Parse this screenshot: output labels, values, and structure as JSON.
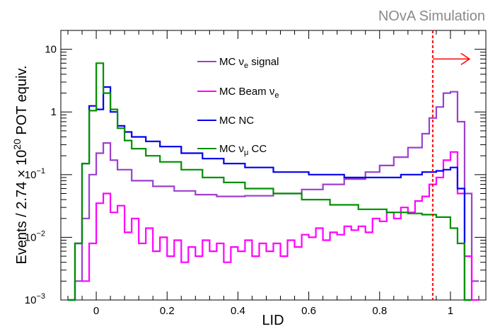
{
  "chart_data": {
    "type": "step-histogram",
    "header_label": "NOvA Simulation",
    "xlabel": "LID",
    "ylabel": "Events / 2.74 × 10^20 POT equiv.",
    "ylabel_parts": {
      "pre": "Events / 2.74 × 10",
      "exp": "20",
      "post": " POT equiv."
    },
    "xlim": [
      -0.1,
      1.1
    ],
    "ylim": [
      0.001,
      20
    ],
    "yscale": "log",
    "x_ticks": [
      {
        "value": 0,
        "label": "0"
      },
      {
        "value": 0.2,
        "label": "0.2"
      },
      {
        "value": 0.4,
        "label": "0.4"
      },
      {
        "value": 0.6,
        "label": "0.6"
      },
      {
        "value": 0.8,
        "label": "0.8"
      },
      {
        "value": 1,
        "label": "1"
      }
    ],
    "y_ticks": [
      {
        "value": 0.001,
        "base": "10",
        "exp": "−3"
      },
      {
        "value": 0.01,
        "base": "10",
        "exp": "−2"
      },
      {
        "value": 0.1,
        "base": "10",
        "exp": "−1"
      },
      {
        "value": 1,
        "base": "1",
        "exp": ""
      },
      {
        "value": 10,
        "base": "10",
        "exp": ""
      }
    ],
    "cut": {
      "value": 0.95,
      "color": "#ff0000",
      "direction": "right"
    },
    "bin_width": 0.02,
    "series": [
      {
        "name": "MC νe signal",
        "legend": {
          "pre": "MC ν",
          "sub": "e",
          "post": " signal"
        },
        "color": "#9c3fd0",
        "points": [
          [
            -0.08,
            0.001
          ],
          [
            -0.06,
            0.002
          ],
          [
            -0.04,
            0.02
          ],
          [
            -0.02,
            0.1
          ],
          [
            0.0,
            0.22
          ],
          [
            0.02,
            0.32
          ],
          [
            0.04,
            0.17
          ],
          [
            0.06,
            0.12
          ],
          [
            0.1,
            0.08
          ],
          [
            0.16,
            0.065
          ],
          [
            0.22,
            0.055
          ],
          [
            0.28,
            0.048
          ],
          [
            0.34,
            0.045
          ],
          [
            0.42,
            0.046
          ],
          [
            0.5,
            0.05
          ],
          [
            0.58,
            0.058
          ],
          [
            0.64,
            0.07
          ],
          [
            0.7,
            0.085
          ],
          [
            0.76,
            0.11
          ],
          [
            0.8,
            0.14
          ],
          [
            0.84,
            0.19
          ],
          [
            0.88,
            0.27
          ],
          [
            0.92,
            0.45
          ],
          [
            0.94,
            0.8
          ],
          [
            0.96,
            1.2
          ],
          [
            0.98,
            2.0
          ],
          [
            1.0,
            2.1
          ],
          [
            1.02,
            0.7
          ],
          [
            1.04,
            0.05
          ],
          [
            1.06,
            0.002
          ]
        ]
      },
      {
        "name": "MC Beam νe",
        "legend": {
          "pre": "MC Beam ν",
          "sub": "e",
          "post": ""
        },
        "color": "#ff00ff",
        "points": [
          [
            -0.04,
            0.002
          ],
          [
            -0.02,
            0.008
          ],
          [
            0.0,
            0.035
          ],
          [
            0.02,
            0.05
          ],
          [
            0.04,
            0.025
          ],
          [
            0.06,
            0.032
          ],
          [
            0.08,
            0.012
          ],
          [
            0.1,
            0.02
          ],
          [
            0.12,
            0.008
          ],
          [
            0.14,
            0.014
          ],
          [
            0.16,
            0.006
          ],
          [
            0.18,
            0.01
          ],
          [
            0.2,
            0.005
          ],
          [
            0.22,
            0.009
          ],
          [
            0.24,
            0.004
          ],
          [
            0.26,
            0.007
          ],
          [
            0.28,
            0.005
          ],
          [
            0.3,
            0.009
          ],
          [
            0.32,
            0.006
          ],
          [
            0.34,
            0.008
          ],
          [
            0.36,
            0.004
          ],
          [
            0.38,
            0.007
          ],
          [
            0.4,
            0.006
          ],
          [
            0.42,
            0.009
          ],
          [
            0.44,
            0.005
          ],
          [
            0.46,
            0.008
          ],
          [
            0.48,
            0.006
          ],
          [
            0.5,
            0.008
          ],
          [
            0.52,
            0.005
          ],
          [
            0.54,
            0.009
          ],
          [
            0.56,
            0.007
          ],
          [
            0.58,
            0.011
          ],
          [
            0.6,
            0.01
          ],
          [
            0.62,
            0.014
          ],
          [
            0.64,
            0.009
          ],
          [
            0.66,
            0.012
          ],
          [
            0.68,
            0.011
          ],
          [
            0.7,
            0.015
          ],
          [
            0.72,
            0.013
          ],
          [
            0.74,
            0.015
          ],
          [
            0.76,
            0.012
          ],
          [
            0.78,
            0.02
          ],
          [
            0.8,
            0.018
          ],
          [
            0.82,
            0.025
          ],
          [
            0.84,
            0.02
          ],
          [
            0.86,
            0.03
          ],
          [
            0.88,
            0.025
          ],
          [
            0.9,
            0.038
          ],
          [
            0.92,
            0.045
          ],
          [
            0.94,
            0.07
          ],
          [
            0.96,
            0.09
          ],
          [
            0.98,
            0.17
          ],
          [
            1.0,
            0.23
          ],
          [
            1.02,
            0.05
          ],
          [
            1.04,
            0.005
          ],
          [
            1.06,
            0.001
          ]
        ]
      },
      {
        "name": "MC NC",
        "legend": {
          "pre": "MC NC",
          "sub": "",
          "post": ""
        },
        "color": "#0000ee",
        "points": [
          [
            -0.08,
            0.001
          ],
          [
            -0.06,
            0.008
          ],
          [
            -0.04,
            0.15
          ],
          [
            -0.02,
            1.25
          ],
          [
            0.0,
            1.1
          ],
          [
            0.02,
            2.5
          ],
          [
            0.04,
            1.0
          ],
          [
            0.06,
            0.6
          ],
          [
            0.08,
            0.48
          ],
          [
            0.1,
            0.4
          ],
          [
            0.14,
            0.34
          ],
          [
            0.18,
            0.28
          ],
          [
            0.24,
            0.22
          ],
          [
            0.3,
            0.18
          ],
          [
            0.36,
            0.15
          ],
          [
            0.42,
            0.13
          ],
          [
            0.5,
            0.11
          ],
          [
            0.6,
            0.1
          ],
          [
            0.7,
            0.09
          ],
          [
            0.8,
            0.09
          ],
          [
            0.86,
            0.1
          ],
          [
            0.92,
            0.11
          ],
          [
            0.96,
            0.115
          ],
          [
            0.98,
            0.12
          ],
          [
            1.0,
            0.13
          ],
          [
            1.02,
            0.06
          ],
          [
            1.04,
            0.001
          ]
        ]
      },
      {
        "name": "MC νμ CC",
        "legend": {
          "pre": "MC ν",
          "sub": "μ",
          "post": " CC"
        },
        "color": "#009000",
        "points": [
          [
            -0.08,
            0.001
          ],
          [
            -0.06,
            0.008
          ],
          [
            -0.04,
            0.15
          ],
          [
            -0.02,
            1.05
          ],
          [
            0.0,
            6.0
          ],
          [
            0.02,
            2.0
          ],
          [
            0.04,
            1.1
          ],
          [
            0.06,
            0.55
          ],
          [
            0.08,
            0.35
          ],
          [
            0.1,
            0.26
          ],
          [
            0.14,
            0.2
          ],
          [
            0.18,
            0.16
          ],
          [
            0.24,
            0.12
          ],
          [
            0.3,
            0.09
          ],
          [
            0.36,
            0.075
          ],
          [
            0.42,
            0.06
          ],
          [
            0.5,
            0.05
          ],
          [
            0.58,
            0.04
          ],
          [
            0.66,
            0.033
          ],
          [
            0.74,
            0.028
          ],
          [
            0.82,
            0.025
          ],
          [
            0.88,
            0.024
          ],
          [
            0.92,
            0.023
          ],
          [
            0.96,
            0.021
          ],
          [
            1.0,
            0.014
          ],
          [
            1.02,
            0.008
          ],
          [
            1.04,
            0.001
          ]
        ]
      }
    ]
  }
}
